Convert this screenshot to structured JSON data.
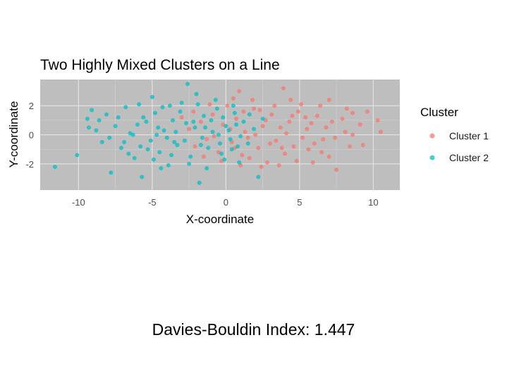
{
  "chart_data": {
    "type": "scatter",
    "title": "Two Highly Mixed Clusters on a Line",
    "xlabel": "X-coordinate",
    "ylabel": "Y-coordinate",
    "xlim": [
      -12.6,
      11.8
    ],
    "ylim": [
      -3.8,
      3.8
    ],
    "x_ticks": [
      -10,
      -5,
      0,
      5,
      10
    ],
    "y_ticks": [
      -2,
      0,
      2
    ],
    "x_tick_labels": [
      "-10",
      "-5",
      "0",
      "5",
      "10"
    ],
    "y_tick_labels": [
      "-2",
      "0",
      "2"
    ],
    "grid": true,
    "panel_background": "#bebebe",
    "legend": {
      "title": "Cluster",
      "position": "right"
    },
    "series": [
      {
        "name": "Cluster 1",
        "color": "#F8766D",
        "points": [
          [
            0.9,
            3.0
          ],
          [
            3.9,
            3.2
          ],
          [
            7.0,
            2.4
          ],
          [
            8.2,
            1.8
          ],
          [
            8.6,
            1.5
          ],
          [
            9.1,
            0.7
          ],
          [
            10.3,
            1.0
          ],
          [
            10.5,
            0.2
          ],
          [
            9.3,
            -0.7
          ],
          [
            8.1,
            0.2
          ],
          [
            8.6,
            0.0
          ],
          [
            7.5,
            -2.4
          ],
          [
            7.0,
            -1.5
          ],
          [
            6.5,
            -1.2
          ],
          [
            6.2,
            1.3
          ],
          [
            5.8,
            0.8
          ],
          [
            5.5,
            0.4
          ],
          [
            5.2,
            -0.2
          ],
          [
            4.9,
            1.6
          ],
          [
            4.6,
            -0.8
          ],
          [
            4.3,
            0.9
          ],
          [
            4.0,
            -1.3
          ],
          [
            3.7,
            0.5
          ],
          [
            3.4,
            -0.4
          ],
          [
            3.1,
            1.4
          ],
          [
            2.8,
            -1.9
          ],
          [
            2.5,
            0.6
          ],
          [
            2.2,
            -0.9
          ],
          [
            1.9,
            1.8
          ],
          [
            1.6,
            -1.6
          ],
          [
            1.3,
            0.2
          ],
          [
            1.0,
            -2.1
          ],
          [
            0.7,
            1.1
          ],
          [
            0.4,
            -0.5
          ],
          [
            0.1,
            2.0
          ],
          [
            -0.2,
            0.7
          ],
          [
            -0.5,
            -1.2
          ],
          [
            -0.9,
            1.4
          ],
          [
            -1.3,
            -0.3
          ],
          [
            -1.7,
            0.9
          ],
          [
            -2.1,
            -0.8
          ],
          [
            -2.5,
            0.4
          ],
          [
            -3.0,
            1.2
          ],
          [
            6.0,
            -0.6
          ],
          [
            6.8,
            0.5
          ],
          [
            7.4,
            -0.2
          ],
          [
            7.9,
            1.1
          ],
          [
            5.1,
            2.1
          ],
          [
            4.4,
            2.4
          ],
          [
            3.3,
            2.0
          ],
          [
            2.7,
            1.0
          ],
          [
            2.0,
            0.0
          ],
          [
            1.5,
            -0.2
          ],
          [
            1.2,
            1.6
          ],
          [
            0.6,
            -0.9
          ],
          [
            0.3,
            0.4
          ],
          [
            4.8,
            -1.8
          ],
          [
            5.9,
            -1.9
          ],
          [
            6.4,
            2.0
          ],
          [
            3.6,
            -2.1
          ],
          [
            2.4,
            -2.2
          ],
          [
            1.8,
            2.4
          ],
          [
            0.5,
            2.5
          ],
          [
            -0.3,
            -1.8
          ],
          [
            -0.8,
            -0.1
          ],
          [
            -1.1,
            2.1
          ],
          [
            5.4,
            1.2
          ],
          [
            6.6,
            -0.3
          ],
          [
            7.2,
            0.9
          ],
          [
            8.4,
            -0.8
          ],
          [
            9.6,
            1.6
          ],
          [
            4.1,
            0.1
          ],
          [
            3.0,
            -0.6
          ],
          [
            2.3,
            1.7
          ],
          [
            1.1,
            -1.4
          ],
          [
            -1.5,
            -1.5
          ],
          [
            -2.2,
            1.6
          ],
          [
            4.5,
            1.3
          ],
          [
            3.8,
            -0.9
          ],
          [
            5.6,
            -1.0
          ]
        ]
      },
      {
        "name": "Cluster 2",
        "color": "#00BFC4",
        "points": [
          [
            -11.6,
            -2.2
          ],
          [
            -10.1,
            -1.4
          ],
          [
            -9.4,
            1.1
          ],
          [
            -9.1,
            1.7
          ],
          [
            -8.8,
            0.3
          ],
          [
            -8.4,
            -0.5
          ],
          [
            -8.1,
            1.4
          ],
          [
            -7.8,
            -2.6
          ],
          [
            -7.5,
            0.6
          ],
          [
            -7.1,
            -0.9
          ],
          [
            -6.8,
            1.9
          ],
          [
            -6.5,
            0.1
          ],
          [
            -6.2,
            -1.6
          ],
          [
            -5.9,
            2.1
          ],
          [
            -5.7,
            -2.9
          ],
          [
            -5.4,
            0.9
          ],
          [
            -5.1,
            -0.4
          ],
          [
            -4.8,
            1.5
          ],
          [
            -4.5,
            -1.2
          ],
          [
            -4.2,
            0.3
          ],
          [
            -3.9,
            -2.1
          ],
          [
            -3.6,
            1.0
          ],
          [
            -3.3,
            -0.7
          ],
          [
            -3.0,
            2.2
          ],
          [
            -2.6,
            3.5
          ],
          [
            -2.4,
            -1.5
          ],
          [
            -2.1,
            0.5
          ],
          [
            -1.8,
            -3.3
          ],
          [
            -1.5,
            1.3
          ],
          [
            -1.2,
            -0.9
          ],
          [
            -0.9,
            0.2
          ],
          [
            -0.6,
            1.8
          ],
          [
            -0.3,
            -1.3
          ],
          [
            0.0,
            0.6
          ],
          [
            0.3,
            -0.3
          ],
          [
            0.6,
            1.5
          ],
          [
            0.9,
            -1.9
          ],
          [
            1.2,
            0.9
          ],
          [
            1.5,
            -0.6
          ],
          [
            1.9,
            0.4
          ],
          [
            2.2,
            -2.9
          ],
          [
            2.5,
            1.1
          ],
          [
            -6.9,
            -0.5
          ],
          [
            -6.0,
            0.7
          ],
          [
            -5.3,
            -1.0
          ],
          [
            -4.6,
            0.5
          ],
          [
            -4.0,
            -0.2
          ],
          [
            -3.4,
            0.2
          ],
          [
            -2.8,
            -0.4
          ],
          [
            -2.2,
            0.9
          ],
          [
            -1.6,
            -0.2
          ],
          [
            -1.0,
            1.0
          ],
          [
            -0.4,
            -0.6
          ],
          [
            0.2,
            0.3
          ],
          [
            0.8,
            -0.8
          ],
          [
            -7.3,
            1.2
          ],
          [
            -6.6,
            -1.3
          ],
          [
            -5.6,
            1.2
          ],
          [
            -4.9,
            -1.7
          ],
          [
            -4.3,
            1.9
          ],
          [
            -3.7,
            -1.4
          ],
          [
            -3.1,
            1.6
          ],
          [
            -2.5,
            -2.0
          ],
          [
            -1.9,
            2.1
          ],
          [
            -1.3,
            -2.3
          ],
          [
            -0.7,
            2.4
          ],
          [
            -0.1,
            -1.7
          ],
          [
            0.5,
            2.0
          ],
          [
            1.0,
            -0.1
          ],
          [
            1.6,
            1.4
          ],
          [
            -8.6,
            1.0
          ],
          [
            -9.3,
            0.5
          ],
          [
            -7.9,
            -0.2
          ],
          [
            -5.0,
            2.6
          ],
          [
            -3.8,
            2.0
          ],
          [
            -2.0,
            2.8
          ],
          [
            -1.4,
            0.5
          ],
          [
            -0.2,
            1.2
          ],
          [
            0.4,
            -1.0
          ],
          [
            -4.4,
            -2.3
          ],
          [
            -6.3,
            0.0
          ],
          [
            -5.8,
            -0.8
          ],
          [
            -4.7,
            0.0
          ],
          [
            -3.5,
            -0.5
          ],
          [
            -2.7,
            0.8
          ],
          [
            -1.7,
            -0.7
          ],
          [
            -0.5,
            0.0
          ],
          [
            0.7,
            0.7
          ]
        ]
      }
    ],
    "annotation": "Davies-Bouldin Index: 1.447"
  }
}
